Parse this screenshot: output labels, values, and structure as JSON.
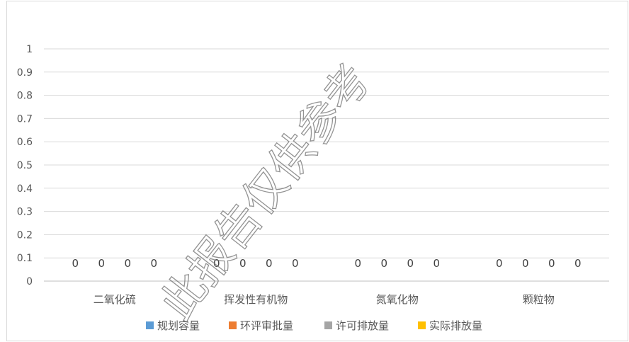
{
  "chart_data": {
    "type": "bar",
    "categories": [
      "二氧化硫",
      "挥发性有机物",
      "氮氧化物",
      "颗粒物"
    ],
    "series": [
      {
        "name": "规划容量",
        "values": [
          0,
          0,
          0,
          0
        ],
        "color": "#5b9bd5"
      },
      {
        "name": "环评审批量",
        "values": [
          0,
          0,
          0,
          0
        ],
        "color": "#ed7d31"
      },
      {
        "name": "许可排放量",
        "values": [
          0,
          0,
          0,
          0
        ],
        "color": "#a5a5a5"
      },
      {
        "name": "实际排放量",
        "values": [
          0,
          0,
          0,
          0
        ],
        "color": "#ffc000"
      }
    ],
    "ylim": [
      0,
      1
    ],
    "yticks": [
      "0",
      "0.1",
      "0.2",
      "0.3",
      "0.4",
      "0.5",
      "0.6",
      "0.7",
      "0.8",
      "0.9",
      "1"
    ],
    "grid": true,
    "legend_position": "bottom",
    "data_labels": true
  },
  "watermark": "此报告仅供参考"
}
